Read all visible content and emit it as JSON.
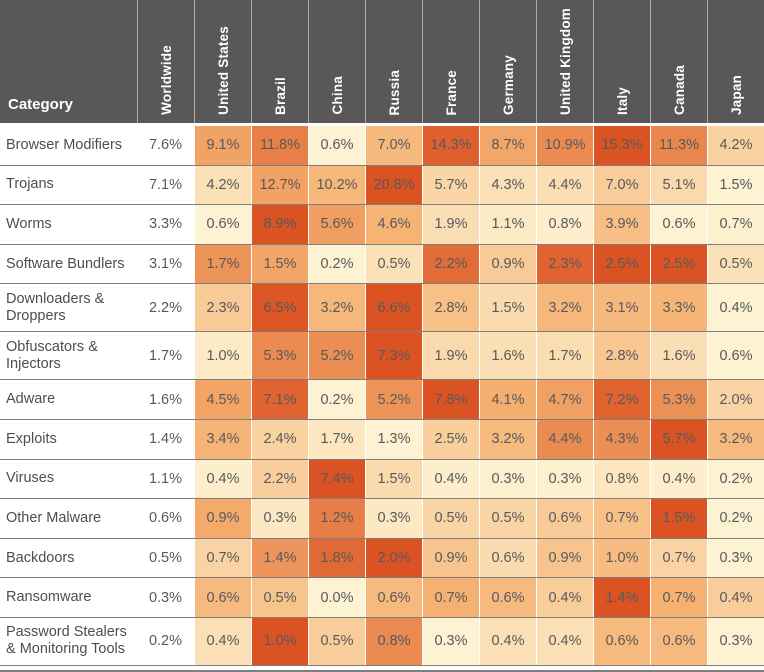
{
  "chart_data": {
    "type": "heatmap",
    "category_header": "Category",
    "columns": [
      "Worldwide",
      "United States",
      "Brazil",
      "China",
      "Russia",
      "France",
      "Germany",
      "United Kingdom",
      "Italy",
      "Canada",
      "Japan"
    ],
    "value_suffix": "%",
    "heat_normalization": "per-row min-max across the 10 country columns; Worldwide column unshaded",
    "legend_position": "none",
    "rows": [
      {
        "category": "Browser Modifiers",
        "values": [
          7.6,
          9.1,
          11.8,
          0.6,
          7.0,
          14.3,
          8.7,
          10.9,
          15.3,
          11.3,
          4.2
        ]
      },
      {
        "category": "Trojans",
        "values": [
          7.1,
          4.2,
          12.7,
          10.2,
          20.8,
          5.7,
          4.3,
          4.4,
          7.0,
          5.1,
          1.5
        ]
      },
      {
        "category": "Worms",
        "values": [
          3.3,
          0.6,
          8.9,
          5.6,
          4.6,
          1.9,
          1.1,
          0.8,
          3.9,
          0.6,
          0.7
        ]
      },
      {
        "category": "Software Bundlers",
        "values": [
          3.1,
          1.7,
          1.5,
          0.2,
          0.5,
          2.2,
          0.9,
          2.3,
          2.5,
          2.5,
          0.5
        ]
      },
      {
        "category": "Downloaders & Droppers",
        "values": [
          2.2,
          2.3,
          6.5,
          3.2,
          6.6,
          2.8,
          1.5,
          3.2,
          3.1,
          3.3,
          0.4
        ]
      },
      {
        "category": "Obfuscators & Injectors",
        "values": [
          1.7,
          1.0,
          5.3,
          5.2,
          7.3,
          1.9,
          1.6,
          1.7,
          2.8,
          1.6,
          0.6
        ]
      },
      {
        "category": "Adware",
        "values": [
          1.6,
          4.5,
          7.1,
          0.2,
          5.2,
          7.8,
          4.1,
          4.7,
          7.2,
          5.3,
          2.0
        ]
      },
      {
        "category": "Exploits",
        "values": [
          1.4,
          3.4,
          2.4,
          1.7,
          1.3,
          2.5,
          3.2,
          4.4,
          4.3,
          5.7,
          3.2
        ]
      },
      {
        "category": "Viruses",
        "values": [
          1.1,
          0.4,
          2.2,
          7.4,
          1.5,
          0.4,
          0.3,
          0.3,
          0.8,
          0.4,
          0.2
        ]
      },
      {
        "category": "Other Malware",
        "values": [
          0.6,
          0.9,
          0.3,
          1.2,
          0.3,
          0.5,
          0.5,
          0.6,
          0.7,
          1.5,
          0.2
        ]
      },
      {
        "category": "Backdoors",
        "values": [
          0.5,
          0.7,
          1.4,
          1.8,
          2.0,
          0.9,
          0.6,
          0.9,
          1.0,
          0.7,
          0.3
        ]
      },
      {
        "category": "Ransomware",
        "values": [
          0.3,
          0.6,
          0.5,
          0.0,
          0.6,
          0.7,
          0.6,
          0.4,
          1.4,
          0.7,
          0.4
        ]
      },
      {
        "category": "Password Stealers & Monitoring Tools",
        "values": [
          0.2,
          0.4,
          1.0,
          0.5,
          0.8,
          0.3,
          0.4,
          0.4,
          0.6,
          0.6,
          0.3
        ]
      }
    ]
  },
  "colors": {
    "header_bg": "#595757",
    "header_text": "#FFFFFF",
    "header_divider": "#ACACAC",
    "row_divider": "#7E7E7E",
    "category_text": "#4E4E50",
    "value_text": "#58595B",
    "heat_min": "#FDF2D1",
    "heat_mid": "#F5B171",
    "heat_max": "#DB5323",
    "background": "#FFFFFF"
  }
}
